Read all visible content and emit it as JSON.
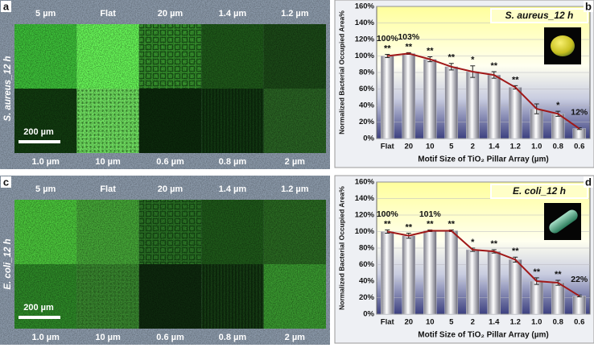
{
  "image_panels": [
    {
      "panel_label": "a",
      "organism_label": "S. aureus_12 h",
      "scale_bar": "200 µm",
      "top_labels": [
        "5 µm",
        "Flat",
        "20 µm",
        "1.4 µm",
        "1.2 µm"
      ],
      "bottom_labels": [
        "1.0 µm",
        "10 µm",
        "0.6 µm",
        "0.8 µm",
        "2 µm"
      ]
    },
    {
      "panel_label": "c",
      "organism_label": "E. coli_12 h",
      "scale_bar": "200 µm",
      "top_labels": [
        "5 µm",
        "Flat",
        "20 µm",
        "1.4 µm",
        "1.2 µm"
      ],
      "bottom_labels": [
        "1.0 µm",
        "10 µm",
        "0.6 µm",
        "0.8 µm",
        "2 µm"
      ]
    }
  ],
  "chart_data": [
    {
      "type": "bar",
      "panel_label": "b",
      "title": "S. aureus_12 h",
      "x_label": "Motif Size of TiO₂ Pillar Array (µm)",
      "y_label": "Normalized Bacterial Occupied Area%",
      "categories": [
        "Flat",
        "20",
        "10",
        "5",
        "2",
        "1.4",
        "1.2",
        "1.0",
        "0.8",
        "0.6"
      ],
      "values": [
        100,
        103,
        96,
        87,
        81,
        77,
        62,
        36,
        30,
        12
      ],
      "errors": [
        2,
        1,
        3,
        4,
        7,
        4,
        2,
        6,
        3,
        1
      ],
      "value_labels": [
        "100%",
        "103%",
        null,
        null,
        null,
        null,
        null,
        null,
        null,
        "12%"
      ],
      "significance": [
        "**",
        "**",
        "**",
        "**",
        "*",
        "**",
        "**",
        null,
        "*",
        null
      ],
      "color": "#c8c8d0",
      "line_color": "#a01818",
      "grid": true,
      "ylim": [
        0,
        160
      ],
      "yticks": [
        {
          "value": 0,
          "label": "0%"
        },
        {
          "value": 20,
          "label": "20%"
        },
        {
          "value": 40,
          "label": "40%"
        },
        {
          "value": 60,
          "label": "60%"
        },
        {
          "value": 80,
          "label": "80%"
        },
        {
          "value": 100,
          "label": "100%"
        },
        {
          "value": 120,
          "label": "120%"
        },
        {
          "value": 140,
          "label": "140%"
        },
        {
          "value": 160,
          "label": "160%"
        }
      ]
    },
    {
      "type": "bar",
      "panel_label": "d",
      "title": "E. coli_12 h",
      "x_label": "Motif Size of TiO₂ Pillar Array (µm)",
      "y_label": "Normalized Bacterial Occupied Area%",
      "categories": [
        "Flat",
        "20",
        "10",
        "5",
        "2",
        "1.4",
        "1.2",
        "1.0",
        "0.8",
        "0.6"
      ],
      "values": [
        100,
        95,
        101,
        101,
        78,
        76,
        66,
        40,
        38,
        22
      ],
      "errors": [
        2,
        3,
        1,
        1,
        2,
        2,
        3,
        4,
        3,
        1
      ],
      "value_labels": [
        "100%",
        null,
        "101%",
        null,
        null,
        null,
        null,
        null,
        null,
        "22%"
      ],
      "significance": [
        "**",
        "**",
        "**",
        "**",
        "*",
        "**",
        "**",
        "**",
        "**",
        null
      ],
      "color": "#c8c8d0",
      "line_color": "#a01818",
      "grid": true,
      "ylim": [
        0,
        160
      ],
      "yticks": [
        {
          "value": 0,
          "label": "0%"
        },
        {
          "value": 20,
          "label": "20%"
        },
        {
          "value": 40,
          "label": "40%"
        },
        {
          "value": 60,
          "label": "60%"
        },
        {
          "value": 80,
          "label": "80%"
        },
        {
          "value": 100,
          "label": "100%"
        },
        {
          "value": 120,
          "label": "120%"
        },
        {
          "value": 140,
          "label": "140%"
        },
        {
          "value": 160,
          "label": "160%"
        }
      ]
    }
  ]
}
